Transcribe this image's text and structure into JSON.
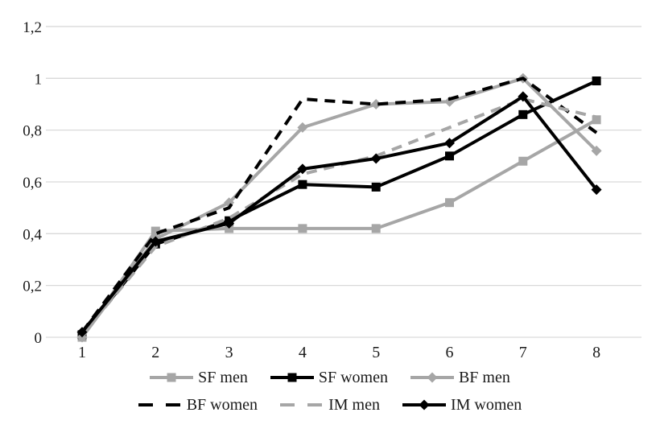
{
  "chart": {
    "background": "#ffffff",
    "grid_color": "#d9d9d9",
    "text_color": "#1a1a1a",
    "axis": {
      "y_tick_labels": [
        "0",
        "0,2",
        "0,4",
        "0,6",
        "0,8",
        "1",
        "1,2"
      ],
      "y_tick_values": [
        0,
        0.2,
        0.4,
        0.6,
        0.8,
        1.0,
        1.2
      ],
      "x_tick_labels": [
        "1",
        "2",
        "3",
        "4",
        "5",
        "6",
        "7",
        "8"
      ]
    }
  },
  "chart_data": {
    "type": "line",
    "title": "",
    "xlabel": "",
    "ylabel": "",
    "x": [
      1,
      2,
      3,
      4,
      5,
      6,
      7,
      8
    ],
    "ylim": [
      0,
      1.2
    ],
    "grid": true,
    "legend_position": "bottom",
    "series": [
      {
        "name": "SF men",
        "color": "#a6a6a6",
        "style": "solid",
        "marker": "square",
        "values": [
          0.0,
          0.41,
          0.42,
          0.42,
          0.42,
          0.52,
          0.68,
          0.84
        ]
      },
      {
        "name": "SF women",
        "color": "#000000",
        "style": "solid",
        "marker": "square",
        "values": [
          0.01,
          0.36,
          0.45,
          0.59,
          0.58,
          0.7,
          0.86,
          0.99
        ]
      },
      {
        "name": "BF men",
        "color": "#a6a6a6",
        "style": "solid",
        "marker": "diamond",
        "values": [
          0.0,
          0.38,
          0.52,
          0.81,
          0.9,
          0.91,
          1.0,
          0.72
        ]
      },
      {
        "name": "BF women",
        "color": "#000000",
        "style": "dashed",
        "marker": "none",
        "values": [
          0.02,
          0.4,
          0.5,
          0.92,
          0.9,
          0.92,
          1.0,
          0.79
        ]
      },
      {
        "name": "IM men",
        "color": "#a6a6a6",
        "style": "dashed",
        "marker": "none",
        "values": [
          0.01,
          0.35,
          0.46,
          0.63,
          0.7,
          0.81,
          0.92,
          0.85
        ]
      },
      {
        "name": "IM women",
        "color": "#000000",
        "style": "solid",
        "marker": "diamond",
        "values": [
          0.02,
          0.37,
          0.44,
          0.65,
          0.69,
          0.75,
          0.93,
          0.57
        ]
      }
    ],
    "legend_rows": [
      [
        "SF men",
        "SF women",
        "BF men"
      ],
      [
        "BF women",
        "IM men",
        "IM women"
      ]
    ]
  }
}
